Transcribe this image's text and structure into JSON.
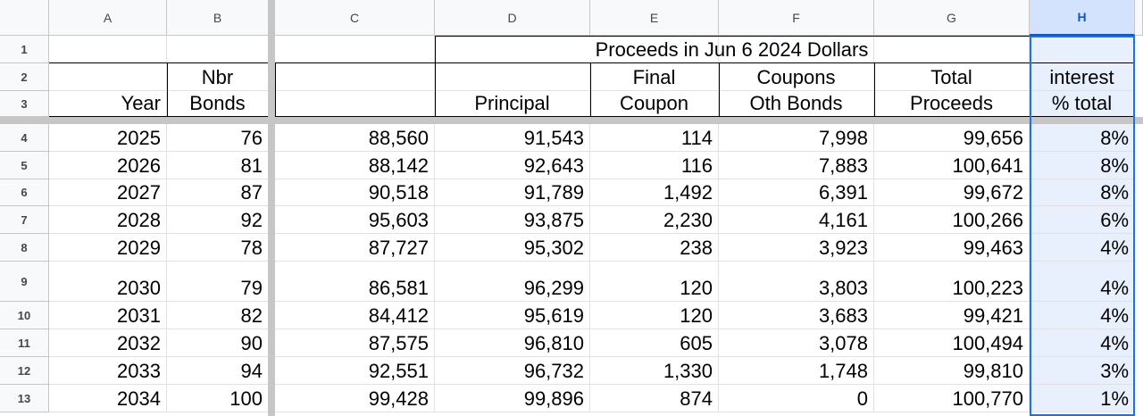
{
  "columns": [
    "A",
    "B",
    "C",
    "D",
    "E",
    "F",
    "G",
    "H"
  ],
  "selected_column": "H",
  "header": {
    "row1_title": "Proceeds in Jun 6 2024 Dollars",
    "row2": {
      "B": "Nbr",
      "E": "Final",
      "F": "Coupons",
      "G": "Total",
      "H": "interest"
    },
    "row3": {
      "A": "Year",
      "B": "Bonds",
      "D": "Principal",
      "E": "Coupon",
      "F": "Oth Bonds",
      "G": "Proceeds",
      "H": "% total"
    }
  },
  "row_numbers": [
    "1",
    "2",
    "3",
    "4",
    "5",
    "6",
    "7",
    "8",
    "9",
    "10",
    "11",
    "12",
    "13"
  ],
  "rows": [
    {
      "A": "2025",
      "B": "76",
      "C": "88,560",
      "D": "91,543",
      "E": "114",
      "F": "7,998",
      "G": "99,656",
      "H": "8%"
    },
    {
      "A": "2026",
      "B": "81",
      "C": "88,142",
      "D": "92,643",
      "E": "116",
      "F": "7,883",
      "G": "100,641",
      "H": "8%"
    },
    {
      "A": "2027",
      "B": "87",
      "C": "90,518",
      "D": "91,789",
      "E": "1,492",
      "F": "6,391",
      "G": "99,672",
      "H": "8%"
    },
    {
      "A": "2028",
      "B": "92",
      "C": "95,603",
      "D": "93,875",
      "E": "2,230",
      "F": "4,161",
      "G": "100,266",
      "H": "6%"
    },
    {
      "A": "2029",
      "B": "78",
      "C": "87,727",
      "D": "95,302",
      "E": "238",
      "F": "3,923",
      "G": "99,463",
      "H": "4%"
    },
    {
      "A": "2030",
      "B": "79",
      "C": "86,581",
      "D": "96,299",
      "E": "120",
      "F": "3,803",
      "G": "100,223",
      "H": "4%"
    },
    {
      "A": "2031",
      "B": "82",
      "C": "84,412",
      "D": "95,619",
      "E": "120",
      "F": "3,683",
      "G": "99,421",
      "H": "4%"
    },
    {
      "A": "2032",
      "B": "90",
      "C": "87,575",
      "D": "96,810",
      "E": "605",
      "F": "3,078",
      "G": "100,494",
      "H": "4%"
    },
    {
      "A": "2033",
      "B": "94",
      "C": "92,551",
      "D": "96,732",
      "E": "1,330",
      "F": "1,748",
      "G": "99,810",
      "H": "3%"
    },
    {
      "A": "2034",
      "B": "100",
      "C": "99,428",
      "D": "99,896",
      "E": "874",
      "F": "0",
      "G": "100,770",
      "H": "1%"
    }
  ],
  "colors": {
    "selection": "#1a73e8",
    "selected_header_bg": "#d3e3fd",
    "selected_cell_bg": "#e8f0fe"
  }
}
